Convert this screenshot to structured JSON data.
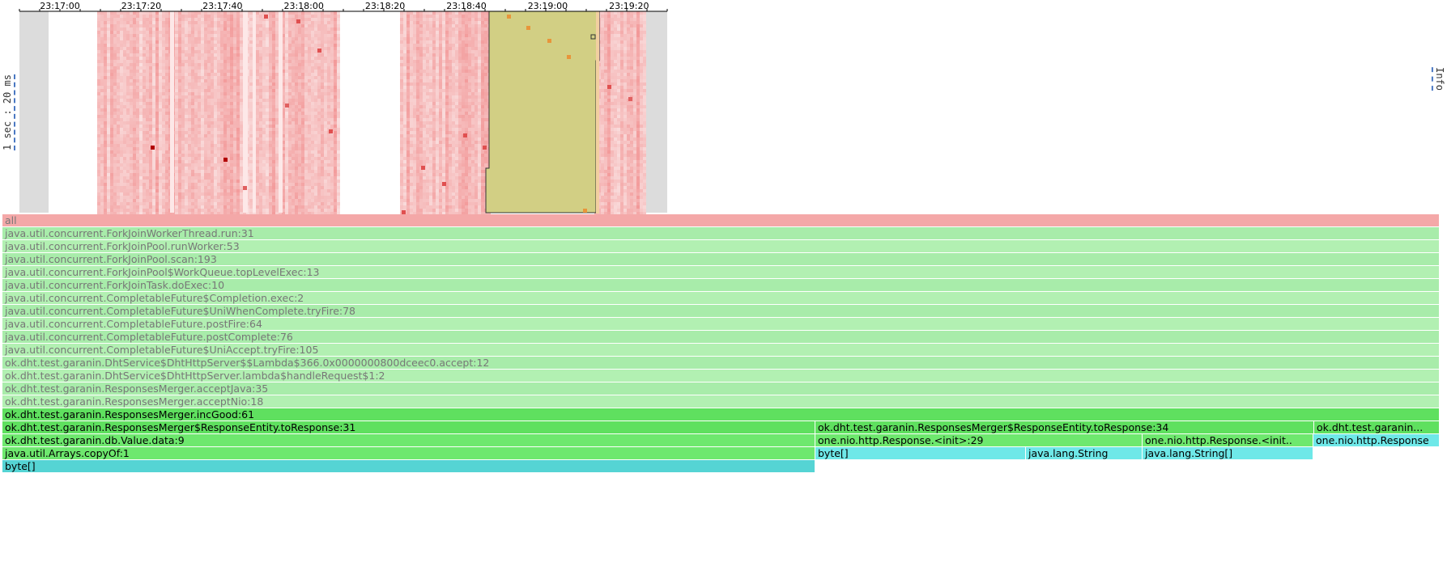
{
  "timeline": {
    "ticks": [
      "23:17:00",
      "23:17:20",
      "23:17:40",
      "23:18:00",
      "23:18:20",
      "23:18:40",
      "23:19:00",
      "23:19:20"
    ],
    "y_label": "1 sec : 20 ms",
    "info_label": "Info"
  },
  "colors": {
    "root": "#f4a8a8",
    "dim_green": "#a8ecaa",
    "dim_green_alt": "#b2f0b2",
    "bright_green": "#5fe05f",
    "green": "#6ee86e",
    "cyan": "#55d4d4",
    "cyan_light": "#6ee8e8",
    "selection": "#d2cf84",
    "heat_light": "#fadada",
    "heat_mid": "#f5aaaa",
    "heat_dark": "#b20000",
    "gray": "#dcdcdc"
  },
  "flame": {
    "rows": [
      [
        {
          "label": "all",
          "style": "root"
        }
      ],
      [
        {
          "label": "java.util.concurrent.ForkJoinWorkerThread.run:31",
          "style": "dim"
        }
      ],
      [
        {
          "label": "java.util.concurrent.ForkJoinPool.runWorker:53",
          "style": "dim"
        }
      ],
      [
        {
          "label": "java.util.concurrent.ForkJoinPool.scan:193",
          "style": "dim"
        }
      ],
      [
        {
          "label": "java.util.concurrent.ForkJoinPool$WorkQueue.topLevelExec:13",
          "style": "dim"
        }
      ],
      [
        {
          "label": "java.util.concurrent.ForkJoinTask.doExec:10",
          "style": "dim"
        }
      ],
      [
        {
          "label": "java.util.concurrent.CompletableFuture$Completion.exec:2",
          "style": "dim"
        }
      ],
      [
        {
          "label": "java.util.concurrent.CompletableFuture$UniWhenComplete.tryFire:78",
          "style": "dim"
        }
      ],
      [
        {
          "label": "java.util.concurrent.CompletableFuture.postFire:64",
          "style": "dim"
        }
      ],
      [
        {
          "label": "java.util.concurrent.CompletableFuture.postComplete:76",
          "style": "dim"
        }
      ],
      [
        {
          "label": "java.util.concurrent.CompletableFuture$UniAccept.tryFire:105",
          "style": "dim"
        }
      ],
      [
        {
          "label": "ok.dht.test.garanin.DhtService$DhtHttpServer$$Lambda$366.0x0000000800dceec0.accept:12",
          "style": "dim"
        }
      ],
      [
        {
          "label": "ok.dht.test.garanin.DhtService$DhtHttpServer.lambda$handleRequest$1:2",
          "style": "dim"
        }
      ],
      [
        {
          "label": "ok.dht.test.garanin.ResponsesMerger.acceptJava:35",
          "style": "dim"
        }
      ],
      [
        {
          "label": "ok.dht.test.garanin.ResponsesMerger.acceptNio:18",
          "style": "dim"
        }
      ],
      [
        {
          "label": "ok.dht.test.garanin.ResponsesMerger.incGood:61",
          "style": "bright"
        }
      ],
      [
        {
          "label": "ok.dht.test.garanin.ResponsesMerger$ResponseEntity.toResponse:31",
          "style": "bright"
        },
        {
          "label": "ok.dht.test.garanin.ResponsesMerger$ResponseEntity.toResponse:34",
          "style": "bright"
        },
        {
          "label": "ok.dht.test.garanin...",
          "style": "bright"
        }
      ],
      [
        {
          "label": "ok.dht.test.garanin.db.Value.data:9",
          "style": "green"
        },
        {
          "label": "one.nio.http.Response.<init>:29",
          "style": "green"
        },
        {
          "label": "one.nio.http.Response.<init..",
          "style": "green"
        },
        {
          "label": "one.nio.http.Response",
          "style": "cyan_light"
        }
      ],
      [
        {
          "label": "java.util.Arrays.copyOf:1",
          "style": "green"
        },
        {
          "label": "byte[]",
          "style": "cyan_light"
        },
        {
          "label": "java.lang.String",
          "style": "cyan_light"
        },
        {
          "label": "java.lang.String[]",
          "style": "cyan_light"
        }
      ],
      [
        {
          "label": "byte[]",
          "style": "cyan"
        }
      ]
    ]
  }
}
